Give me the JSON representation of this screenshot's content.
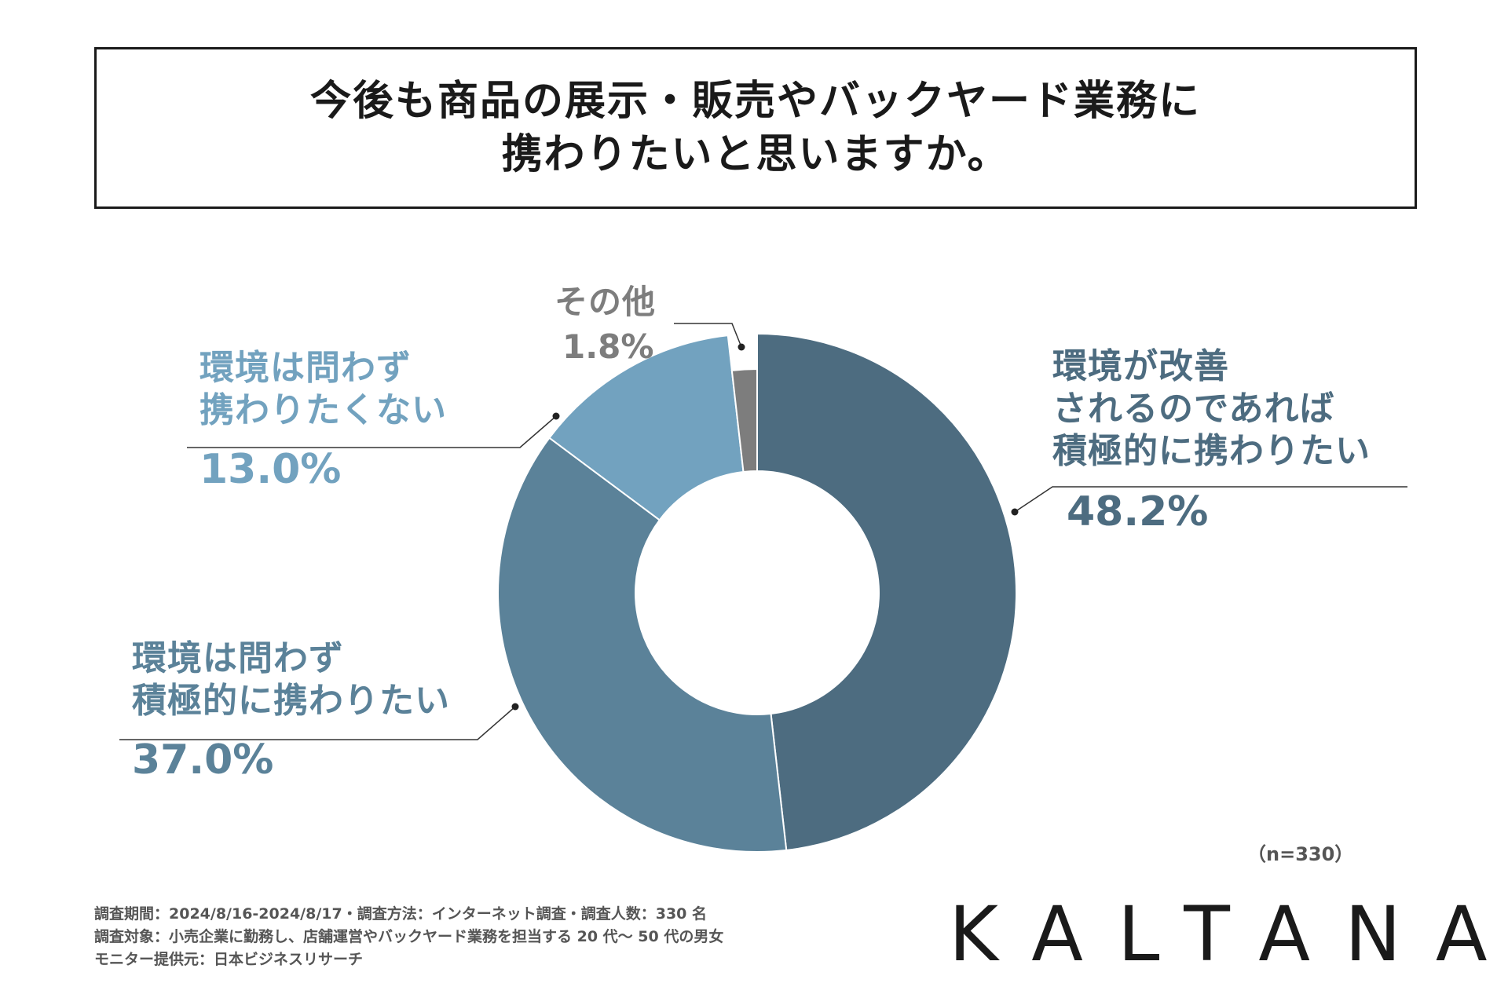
{
  "title": {
    "line1": "今後も商品の展示・販売やバックヤード業務に",
    "line2": "携わりたいと思いますか。"
  },
  "chart_data": {
    "type": "pie",
    "donut": true,
    "slices": [
      {
        "label_lines": [
          "環境が改善",
          "されるのであれば",
          "積極的に携わりたい"
        ],
        "value": 48.2,
        "value_text": "48.2%",
        "color": "#4d6c80"
      },
      {
        "label_lines": [
          "環境は問わず",
          "積極的に携わりたい"
        ],
        "value": 37.0,
        "value_text": "37.0%",
        "color": "#5b8299"
      },
      {
        "label_lines": [
          "環境は問わず",
          "携わりたくない"
        ],
        "value": 13.0,
        "value_text": "13.0%",
        "color": "#72a2bf"
      },
      {
        "label_lines": [
          "その他"
        ],
        "value": 1.8,
        "value_text": "1.8%",
        "color": "#7d7d7d"
      }
    ],
    "start_angle_deg": 0,
    "direction": "clockwise"
  },
  "sample_size": "（n=330）",
  "footnotes": [
    "調査期間：2024/8/16-2024/8/17・調査方法：インターネット調査・調査人数：330 名",
    "調査対象：小売企業に勤務し、店舗運営やバックヤード業務を担当する 20 代～ 50 代の男女",
    "モニター提供元：日本ビジネスリサーチ"
  ],
  "logo": "KALTANA"
}
